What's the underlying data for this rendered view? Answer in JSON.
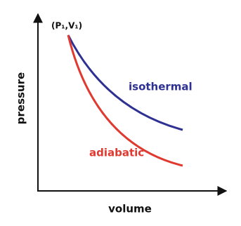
{
  "point_label": "(P₁,V₁)",
  "curves": {
    "isothermal": "isothermal",
    "adiabatic": "adiabatic"
  },
  "axes": {
    "y_label": "pressure",
    "x_label": "volume"
  }
}
